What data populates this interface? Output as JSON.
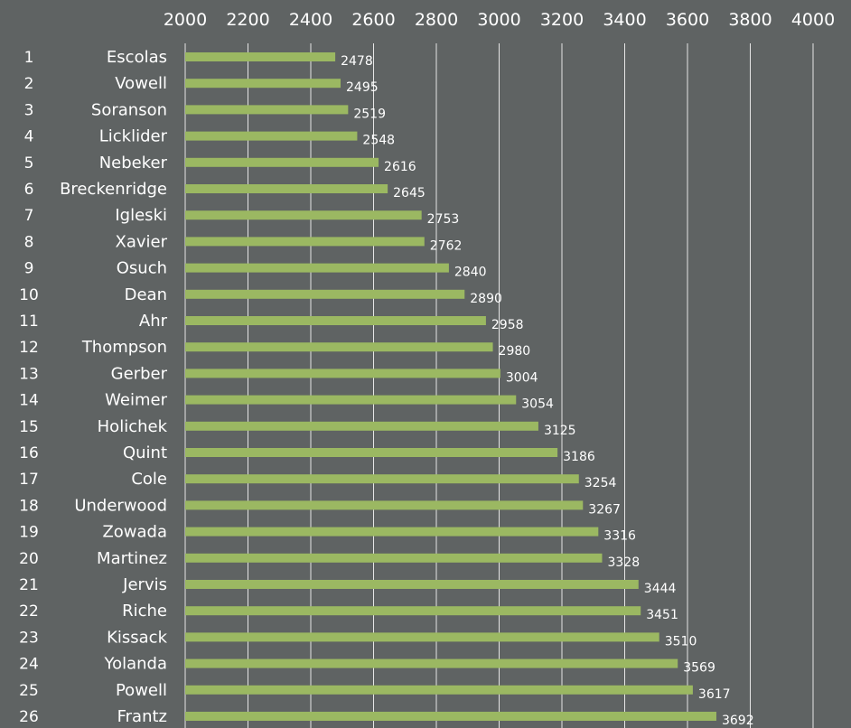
{
  "chart_data": {
    "type": "bar",
    "orientation": "horizontal",
    "xlim": [
      2000,
      4000
    ],
    "x_ticks": [
      "2000",
      "2200",
      "2400",
      "2600",
      "2800",
      "3000",
      "3200",
      "3400",
      "3600",
      "3800",
      "4000"
    ],
    "grid": true,
    "colors": {
      "background": "#5f6363",
      "bar": "#9bb862",
      "grid": "#e6e6e6",
      "text": "#ffffff"
    },
    "rows": [
      {
        "rank": "1",
        "name": "Escolas",
        "value": 2478
      },
      {
        "rank": "2",
        "name": "Vowell",
        "value": 2495
      },
      {
        "rank": "3",
        "name": "Soranson",
        "value": 2519
      },
      {
        "rank": "4",
        "name": "Licklider",
        "value": 2548
      },
      {
        "rank": "5",
        "name": "Nebeker",
        "value": 2616
      },
      {
        "rank": "6",
        "name": "Breckenridge",
        "value": 2645
      },
      {
        "rank": "7",
        "name": "Igleski",
        "value": 2753
      },
      {
        "rank": "8",
        "name": "Xavier",
        "value": 2762
      },
      {
        "rank": "9",
        "name": "Osuch",
        "value": 2840
      },
      {
        "rank": "10",
        "name": "Dean",
        "value": 2890
      },
      {
        "rank": "11",
        "name": "Ahr",
        "value": 2958
      },
      {
        "rank": "12",
        "name": "Thompson",
        "value": 2980
      },
      {
        "rank": "13",
        "name": "Gerber",
        "value": 3004
      },
      {
        "rank": "14",
        "name": "Weimer",
        "value": 3054
      },
      {
        "rank": "15",
        "name": "Holichek",
        "value": 3125
      },
      {
        "rank": "16",
        "name": "Quint",
        "value": 3186
      },
      {
        "rank": "17",
        "name": "Cole",
        "value": 3254
      },
      {
        "rank": "18",
        "name": "Underwood",
        "value": 3267
      },
      {
        "rank": "19",
        "name": "Zowada",
        "value": 3316
      },
      {
        "rank": "20",
        "name": "Martinez",
        "value": 3328
      },
      {
        "rank": "21",
        "name": "Jervis",
        "value": 3444
      },
      {
        "rank": "22",
        "name": "Riche",
        "value": 3451
      },
      {
        "rank": "23",
        "name": "Kissack",
        "value": 3510
      },
      {
        "rank": "24",
        "name": "Yolanda",
        "value": 3569
      },
      {
        "rank": "25",
        "name": "Powell",
        "value": 3617
      },
      {
        "rank": "26",
        "name": "Frantz",
        "value": 3692
      }
    ]
  }
}
